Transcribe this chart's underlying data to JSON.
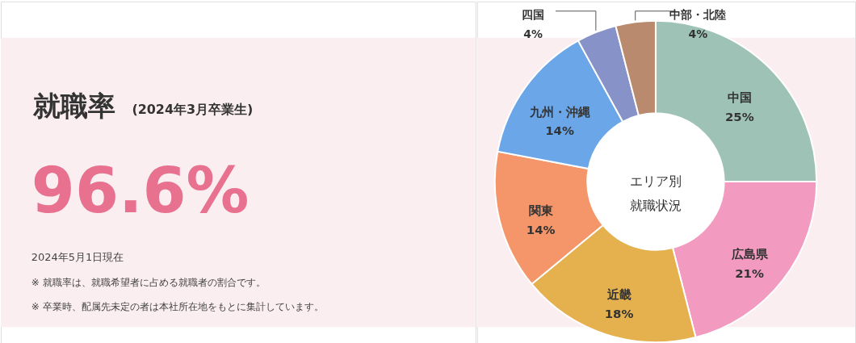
{
  "chart_data": [
    {
      "type": "other",
      "title": "就職率",
      "subtitle": "(2024年3月卒業生)",
      "annotations": [
        "96.6%",
        "2024年5月1日現在",
        "※ 就職率は、就職希望者に占める就職者の割合です。",
        "※ 卒業時、配属先未定の者は本社所在地をもとに集計しています。"
      ]
    },
    {
      "type": "donut",
      "title": "エリア別就職状況",
      "categories": [
        "中国",
        "広島県",
        "近畿",
        "関東",
        "九州・沖縄",
        "四国",
        "中部・北陸"
      ],
      "values": [
        25,
        21,
        18,
        14,
        14,
        4,
        4
      ],
      "value_labels": [
        "25%",
        "21%",
        "18%",
        "14%",
        "14%",
        "4%",
        "4%"
      ],
      "colors": [
        "#9ec3b6",
        "#f29ac0",
        "#e5b04e",
        "#f5966a",
        "#6aa6e8",
        "#8792c8",
        "#b98a6e"
      ]
    }
  ]
}
